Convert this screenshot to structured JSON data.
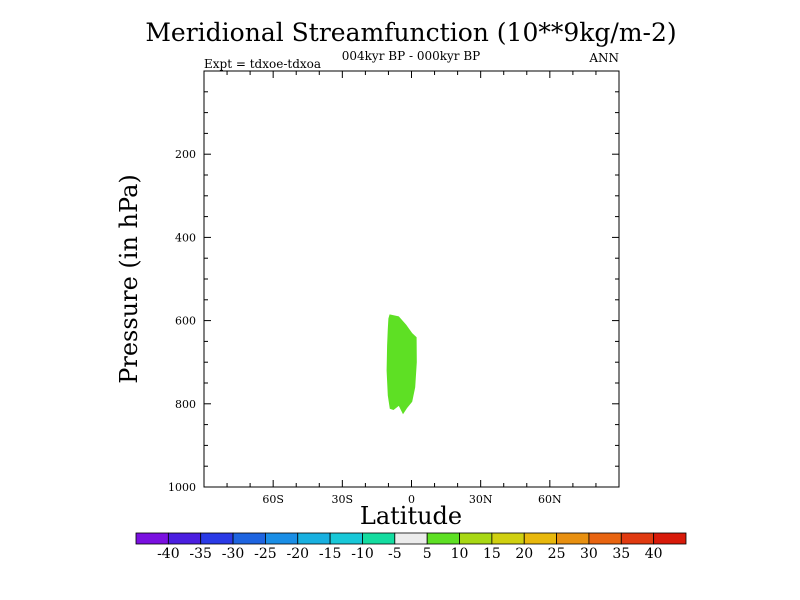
{
  "chart_data": {
    "type": "contour",
    "title": "Meridional Streamfunction (10**9kg/m-2)",
    "subtitle": "004kyr BP - 000kyr BP",
    "left_label": "Expt = tdxoe-tdxoa",
    "right_label": "ANN",
    "xlabel": "Latitude",
    "ylabel": "Pressure (in hPa)",
    "xlim": [
      -90,
      90
    ],
    "ylim": [
      1000,
      0
    ],
    "x_ticks": [
      {
        "value": -60,
        "label": "60S"
      },
      {
        "value": -30,
        "label": "30S"
      },
      {
        "value": 0,
        "label": "0"
      },
      {
        "value": 30,
        "label": "30N"
      },
      {
        "value": 60,
        "label": "60N"
      }
    ],
    "y_ticks": [
      {
        "value": 200,
        "label": "200"
      },
      {
        "value": 400,
        "label": "400"
      },
      {
        "value": 600,
        "label": "600"
      },
      {
        "value": 800,
        "label": "800"
      },
      {
        "value": 1000,
        "label": "1000"
      }
    ],
    "regions": [
      {
        "level_range": [
          5,
          10
        ],
        "color": "#5ee024",
        "polygon": [
          [
            -9.5,
            585
          ],
          [
            -5.5,
            590
          ],
          [
            -2.3,
            610
          ],
          [
            0.3,
            630
          ],
          [
            2.2,
            640
          ],
          [
            2.3,
            700
          ],
          [
            1.6,
            760
          ],
          [
            0.3,
            795
          ],
          [
            -1.9,
            810
          ],
          [
            -3.7,
            825
          ],
          [
            -5.5,
            805
          ],
          [
            -7.8,
            815
          ],
          [
            -9.4,
            812
          ],
          [
            -10.3,
            780
          ],
          [
            -10.8,
            720
          ],
          [
            -10.6,
            660
          ],
          [
            -10.3,
            620
          ],
          [
            -10.0,
            595
          ]
        ]
      }
    ],
    "colorbar": {
      "labels": [
        "-40",
        "-35",
        "-30",
        "-25",
        "-20",
        "-15",
        "-10",
        "-5",
        "5",
        "10",
        "15",
        "20",
        "25",
        "30",
        "35",
        "40"
      ],
      "colors": [
        "#7a10e0",
        "#4a1ee0",
        "#2a3ae6",
        "#1e64e0",
        "#1a8ee6",
        "#18b0e0",
        "#18c8d8",
        "#14dca0",
        "#ececec",
        "#5ee024",
        "#a8d814",
        "#d0d010",
        "#e8b80c",
        "#e89010",
        "#e86410",
        "#e03a10",
        "#d81a0a"
      ]
    }
  }
}
